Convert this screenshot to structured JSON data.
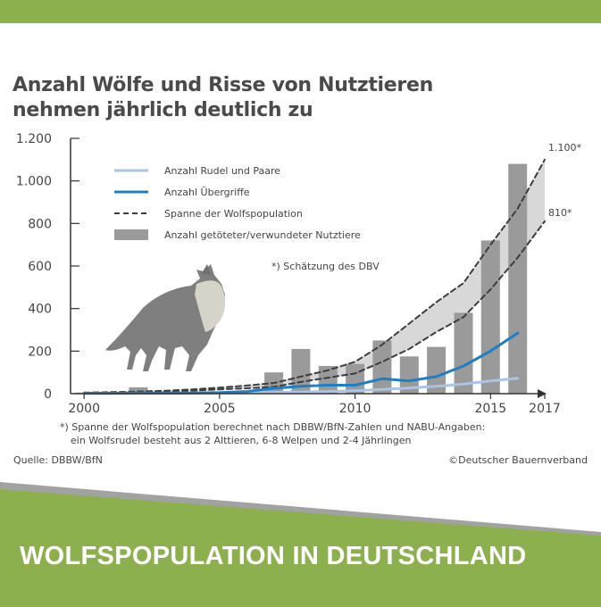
{
  "chart_data": {
    "type": "bar",
    "title_line1": "Anzahl Wölfe und Risse von Nutztieren",
    "title_line2": "nehmen jährlich deutlich zu",
    "x_tick_labels": [
      "2000",
      "2005",
      "2010",
      "2015",
      "2017"
    ],
    "x_ticks": [
      2000,
      2005,
      2010,
      2015,
      2017
    ],
    "xlim": [
      1999.5,
      2017
    ],
    "y_tick_labels": [
      "0",
      "200",
      "400",
      "600",
      "800",
      "1.000",
      "1.200"
    ],
    "y_ticks": [
      0,
      200,
      400,
      600,
      800,
      1000,
      1200
    ],
    "ylim": [
      0,
      1200
    ],
    "legend": [
      {
        "label": "Anzahl Rudel und Paare",
        "style": "line",
        "color": "#a9c4e6"
      },
      {
        "label": "Anzahl Übergriffe",
        "style": "line",
        "color": "#1f7fc4"
      },
      {
        "label": "Spanne der Wolfspopulation",
        "style": "dashed",
        "color": "#3d3d3d"
      },
      {
        "label": "Anzahl getöteter/verwundeter Nutztiere",
        "style": "bar",
        "color": "#9a9a9a"
      }
    ],
    "series": [
      {
        "name": "Anzahl getöteter/verwundeter Nutztiere",
        "kind": "bar",
        "x": [
          2000,
          2001,
          2002,
          2003,
          2004,
          2005,
          2006,
          2007,
          2008,
          2009,
          2010,
          2011,
          2012,
          2013,
          2014,
          2015,
          2016
        ],
        "values": [
          5,
          3,
          30,
          10,
          5,
          5,
          15,
          100,
          210,
          130,
          140,
          250,
          175,
          220,
          380,
          720,
          1080
        ]
      },
      {
        "name": "Anzahl Übergriffe",
        "kind": "line",
        "x": [
          2000,
          2001,
          2002,
          2003,
          2004,
          2005,
          2006,
          2007,
          2008,
          2009,
          2010,
          2011,
          2012,
          2013,
          2014,
          2015,
          2016
        ],
        "values": [
          2,
          2,
          3,
          3,
          3,
          5,
          10,
          25,
          35,
          40,
          40,
          70,
          60,
          80,
          130,
          200,
          285
        ]
      },
      {
        "name": "Anzahl Rudel und Paare",
        "kind": "line",
        "x": [
          2000,
          2001,
          2002,
          2003,
          2004,
          2005,
          2006,
          2007,
          2008,
          2009,
          2010,
          2011,
          2012,
          2013,
          2014,
          2015,
          2016
        ],
        "values": [
          1,
          1,
          2,
          2,
          3,
          4,
          5,
          6,
          8,
          10,
          14,
          20,
          27,
          35,
          45,
          60,
          72
        ]
      },
      {
        "name": "Spanne der Wolfspopulation (oben)",
        "kind": "dashed",
        "x": [
          2000,
          2001,
          2002,
          2003,
          2004,
          2005,
          2006,
          2007,
          2008,
          2009,
          2010,
          2011,
          2012,
          2013,
          2014,
          2015,
          2016,
          2017
        ],
        "values": [
          5,
          7,
          10,
          14,
          20,
          28,
          38,
          50,
          80,
          110,
          150,
          230,
          330,
          430,
          520,
          700,
          870,
          1100
        ]
      },
      {
        "name": "Spanne der Wolfspopulation (unten)",
        "kind": "dashed",
        "x": [
          2000,
          2001,
          2002,
          2003,
          2004,
          2005,
          2006,
          2007,
          2008,
          2009,
          2010,
          2011,
          2012,
          2013,
          2014,
          2015,
          2016,
          2017
        ],
        "values": [
          3,
          5,
          7,
          10,
          14,
          20,
          25,
          32,
          55,
          75,
          95,
          150,
          210,
          290,
          360,
          490,
          640,
          810
        ]
      }
    ],
    "annotations": {
      "upper_end": "1.100*",
      "lower_end": "810*",
      "estimate_note": "*) Schätzung des DBV"
    }
  },
  "footnote_line1": "*) Spanne der Wolfspopulation berechnet nach DBBW/BfN-Zahlen und NABU-Angaben:",
  "footnote_line2": "ein Wolfsrudel besteht aus 2 Alttieren, 6-8 Welpen und 2-4 Jährlingen",
  "source": "Quelle: DBBW/BfN",
  "copyright": "©Deutscher Bauernverband",
  "banner_text": "WOLFSPOPULATION IN DEUTSCHLAND",
  "colors": {
    "green": "#8db04f",
    "bar": "#9a9a9a",
    "band": "#d8d8d8",
    "blue_dark": "#1f7fc4",
    "blue_light": "#a9c4e6",
    "dash": "#3d3d3d",
    "wolf": "#7f7f7f",
    "wolf_light": "#d6d3c8"
  }
}
